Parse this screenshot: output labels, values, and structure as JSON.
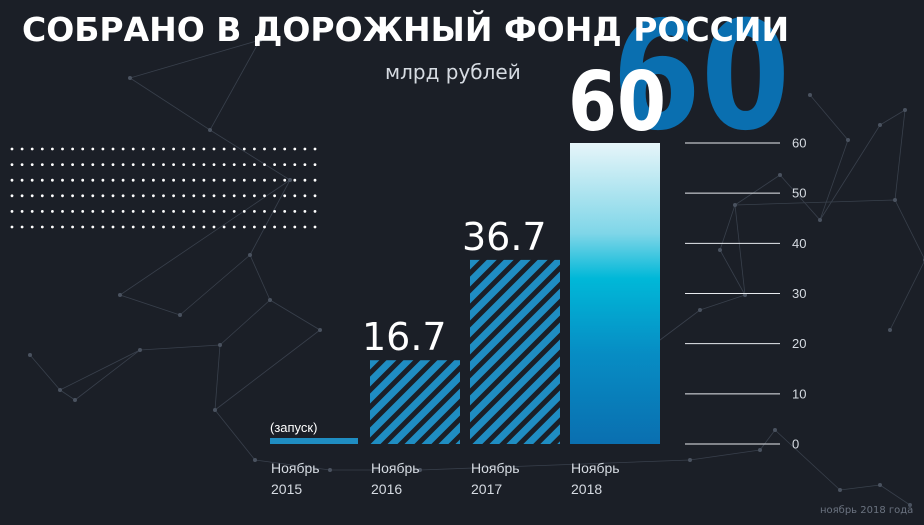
{
  "title": "СОБРАНО В ДОРОЖНЫЙ ФОНД РОССИИ",
  "unit": "млрд рублей",
  "credit": "ноябрь 2018 года",
  "colors": {
    "background": "#1b1f27",
    "bar_stripe": "#1f8dc2",
    "bar_gradient_top": "#e6f5f9",
    "bar_gradient_mid": "#00b8d8",
    "bar_gradient_bottom": "#0a6fb0",
    "big_number": "#0a6fb0",
    "text": "#ffffff",
    "axis_text": "#d6dbe2"
  },
  "chart_data": {
    "type": "bar",
    "categories": [
      "Ноябрь 2015",
      "Ноябрь 2016",
      "Ноябрь 2017",
      "Ноябрь 2018"
    ],
    "category_lines": [
      [
        "Ноябрь",
        "2015"
      ],
      [
        "Ноябрь",
        "2016"
      ],
      [
        "Ноябрь",
        "2017"
      ],
      [
        "Ноябрь",
        "2018"
      ]
    ],
    "values": [
      0.5,
      16.7,
      36.7,
      60
    ],
    "value_labels": [
      "(запуск)",
      "16.7",
      "36.7",
      "60"
    ],
    "bar_styles": [
      "solid",
      "striped",
      "striped",
      "gradient"
    ],
    "ylim": [
      0,
      60
    ],
    "yticks": [
      0,
      10,
      20,
      30,
      40,
      50,
      60
    ],
    "grid": true,
    "highlight_number": "60"
  }
}
